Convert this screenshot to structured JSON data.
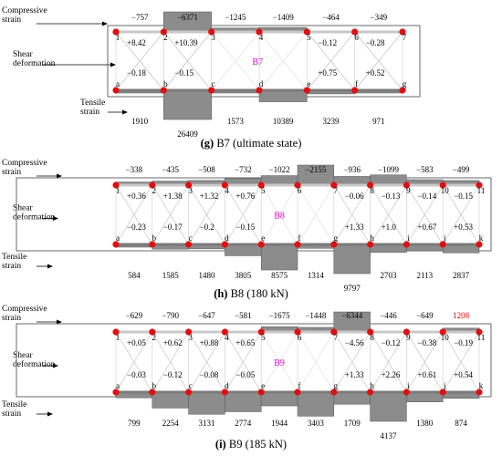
{
  "colors": {
    "node": "#e01010",
    "beam_dark": "#7a7a7a",
    "beam_light": "#c8c8c8",
    "bar_fill": "#8c8c8c",
    "tensile_over_limit": "#e00000",
    "beam_name": "#e600e6"
  },
  "labels": {
    "compressive": "Compressive\nstrain",
    "shear": "Shear\ndeformation",
    "tensile": "Tensile\nstrain"
  },
  "panels": [
    {
      "name": "B7",
      "caption_letter": "(g)",
      "caption_rest": " B7 (ultimate state)",
      "top_nodes": [
        "1",
        "2",
        "3",
        "4",
        "5",
        "6",
        "7"
      ],
      "bottom_nodes": [
        "a",
        "b",
        "c",
        "d",
        "e",
        "f",
        "g"
      ],
      "compressive": [
        "−757",
        "−6371",
        "−1245",
        "−1409",
        "−464",
        "−349"
      ],
      "compressive_values": [
        -757,
        -6371,
        -1245,
        -1409,
        -464,
        -349
      ],
      "shear_top": [
        "+8.42",
        "+10.39",
        "",
        "",
        "−0.12",
        "−0.28"
      ],
      "shear_bottom": [
        "−0.18",
        "−0.15",
        "",
        "",
        "+0.75",
        "+0.52"
      ],
      "tensile": [
        "1910",
        "26409",
        "1573",
        "10389",
        "3239",
        "971"
      ],
      "tensile_values": [
        1910,
        26409,
        1573,
        10389,
        3239,
        971
      ]
    },
    {
      "name": "B8",
      "caption_letter": "(h)",
      "caption_rest": " B8 (180 kN)",
      "top_nodes": [
        "1",
        "2",
        "3",
        "4",
        "5",
        "6",
        "7",
        "8",
        "9",
        "10",
        "11"
      ],
      "bottom_nodes": [
        "a",
        "b",
        "c",
        "d",
        "e",
        "f",
        "g",
        "h",
        "i",
        "j",
        "k"
      ],
      "compressive": [
        "−338",
        "−435",
        "−508",
        "−732",
        "−1022",
        "−2155",
        "−936",
        "−1099",
        "−583",
        "−499"
      ],
      "compressive_values": [
        -338,
        -435,
        -508,
        -732,
        -1022,
        -2155,
        -936,
        -1099,
        -583,
        -499
      ],
      "shear_top": [
        "+0.36",
        "+1.38",
        "+1.32",
        "+0.76",
        "",
        "",
        "−0.06",
        "−0.13",
        "−0.14",
        "−0.15"
      ],
      "shear_bottom": [
        "−0.23",
        "−0.17",
        "−0.2",
        "−0.15",
        "",
        "",
        "+1.33",
        "+1.0",
        "+0.67",
        "+0.53"
      ],
      "tensile": [
        "584",
        "1585",
        "1480",
        "3805",
        "8575",
        "1314",
        "9797",
        "2703",
        "2113",
        "2837"
      ],
      "tensile_values": [
        584,
        1585,
        1480,
        3805,
        8575,
        1314,
        9797,
        2703,
        2113,
        2837
      ]
    },
    {
      "name": "B9",
      "caption_letter": "(i)",
      "caption_rest": " B9 (185 kN)",
      "top_nodes": [
        "1",
        "2",
        "3",
        "4",
        "5",
        "6",
        "7",
        "8",
        "9",
        "10",
        "11"
      ],
      "bottom_nodes": [
        "a",
        "b",
        "c",
        "d",
        "e",
        "f",
        "g",
        "h",
        "i",
        "j",
        "k"
      ],
      "compressive": [
        "−629",
        "−790",
        "−647",
        "−581",
        "−1675",
        "−1448",
        "−6344",
        "−446",
        "−649",
        "1208"
      ],
      "compressive_values": [
        -629,
        -790,
        -647,
        -581,
        -1675,
        -1448,
        -6344,
        -446,
        -649,
        1208
      ],
      "shear_top": [
        "+0.05",
        "+0.62",
        "+0.88",
        "+0.65",
        "",
        "",
        "−4.56",
        "−0.12",
        "−0.38",
        "−0.19"
      ],
      "shear_bottom": [
        "−0.03",
        "−0.12",
        "−0.08",
        "−0.05",
        "",
        "",
        "+1.33",
        "+2.26",
        "+0.61",
        "+0.54"
      ],
      "tensile": [
        "799",
        "2254",
        "3131",
        "2774",
        "1944",
        "3403",
        "1709",
        "4137",
        "1380",
        "874"
      ],
      "tensile_values": [
        799,
        2254,
        3131,
        2774,
        1944,
        3403,
        1709,
        4137,
        1380,
        874
      ]
    }
  ]
}
